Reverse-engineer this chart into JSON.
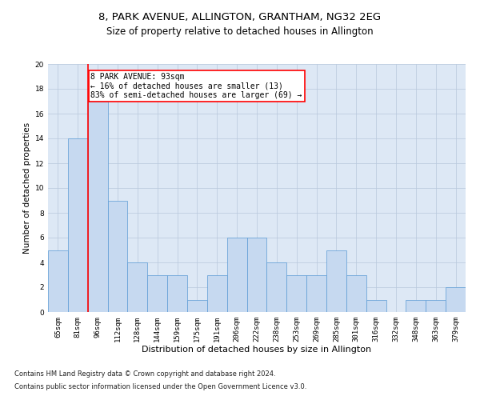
{
  "title1": "8, PARK AVENUE, ALLINGTON, GRANTHAM, NG32 2EG",
  "title2": "Size of property relative to detached houses in Allington",
  "xlabel": "Distribution of detached houses by size in Allington",
  "ylabel": "Number of detached properties",
  "categories": [
    "65sqm",
    "81sqm",
    "96sqm",
    "112sqm",
    "128sqm",
    "144sqm",
    "159sqm",
    "175sqm",
    "191sqm",
    "206sqm",
    "222sqm",
    "238sqm",
    "253sqm",
    "269sqm",
    "285sqm",
    "301sqm",
    "316sqm",
    "332sqm",
    "348sqm",
    "363sqm",
    "379sqm"
  ],
  "values": [
    5,
    14,
    17,
    9,
    4,
    3,
    3,
    1,
    3,
    6,
    6,
    4,
    3,
    3,
    5,
    3,
    1,
    0,
    1,
    1,
    2
  ],
  "bar_color": "#c6d9f0",
  "bar_edge_color": "#5b9bd5",
  "annotation_title": "8 PARK AVENUE: 93sqm",
  "annotation_line1": "← 16% of detached houses are smaller (13)",
  "annotation_line2": "83% of semi-detached houses are larger (69) →",
  "ylim": [
    0,
    20
  ],
  "yticks": [
    0,
    2,
    4,
    6,
    8,
    10,
    12,
    14,
    16,
    18,
    20
  ],
  "footnote1": "Contains HM Land Registry data © Crown copyright and database right 2024.",
  "footnote2": "Contains public sector information licensed under the Open Government Licence v3.0.",
  "bg_color": "#ffffff",
  "plot_bg_color": "#dde8f5",
  "grid_color": "#b8c8dc",
  "title1_fontsize": 9.5,
  "title2_fontsize": 8.5,
  "xlabel_fontsize": 8,
  "ylabel_fontsize": 7.5,
  "tick_fontsize": 6.5,
  "annotation_fontsize": 7,
  "footnote_fontsize": 6
}
